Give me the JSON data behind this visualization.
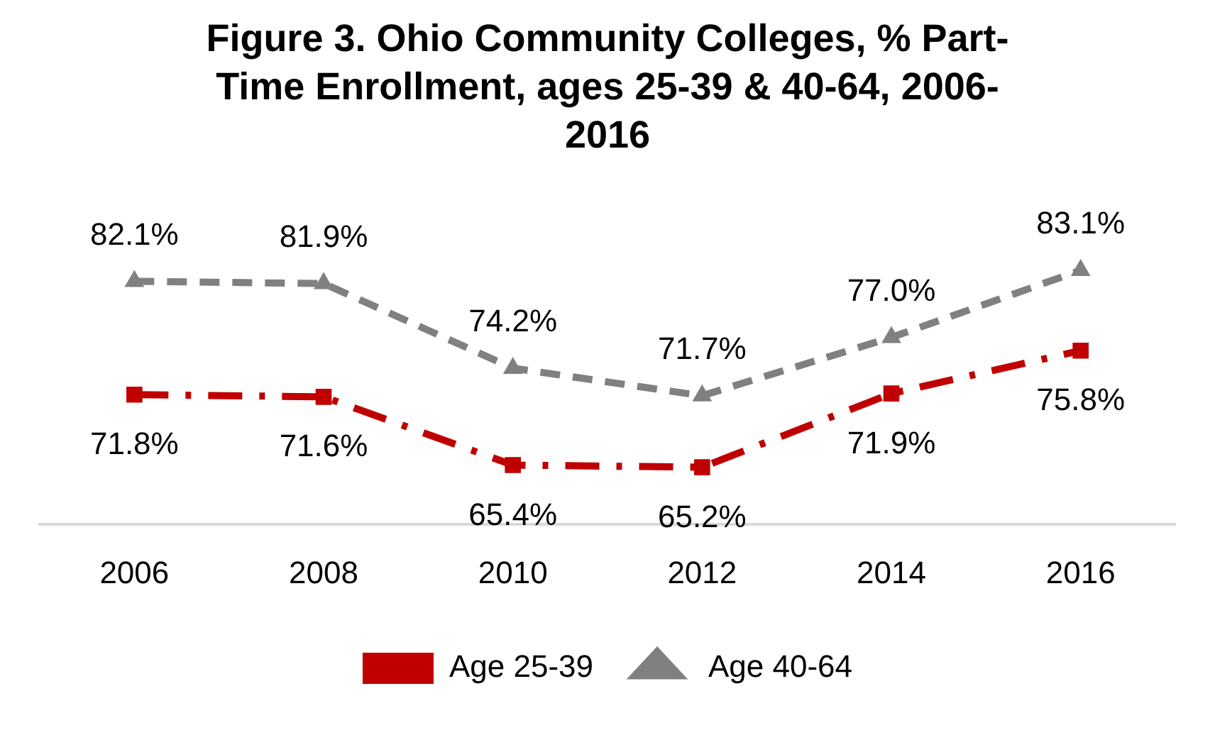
{
  "chart_data": {
    "type": "line",
    "title": "Figure 3. Ohio Community Colleges, % Part-Time Enrollment, ages 25-39 & 40-64, 2006-2016",
    "categories": [
      "2006",
      "2008",
      "2010",
      "2012",
      "2014",
      "2016"
    ],
    "series": [
      {
        "name": "Age 25-39",
        "color": "#c00000",
        "values": [
          71.8,
          71.6,
          65.4,
          65.2,
          71.9,
          75.8
        ],
        "value_labels": [
          "71.8%",
          "71.6%",
          "65.4%",
          "65.2%",
          "71.9%",
          "75.8%"
        ],
        "marker": "square",
        "line_style": "dashdot"
      },
      {
        "name": "Age 40-64",
        "color": "#808080",
        "values": [
          82.1,
          81.9,
          74.2,
          71.7,
          77.0,
          83.1
        ],
        "value_labels": [
          "82.1%",
          "81.9%",
          "74.2%",
          "71.7%",
          "77.0%",
          "83.1%"
        ],
        "marker": "triangle",
        "line_style": "dashed"
      }
    ],
    "legend": "bottom"
  }
}
